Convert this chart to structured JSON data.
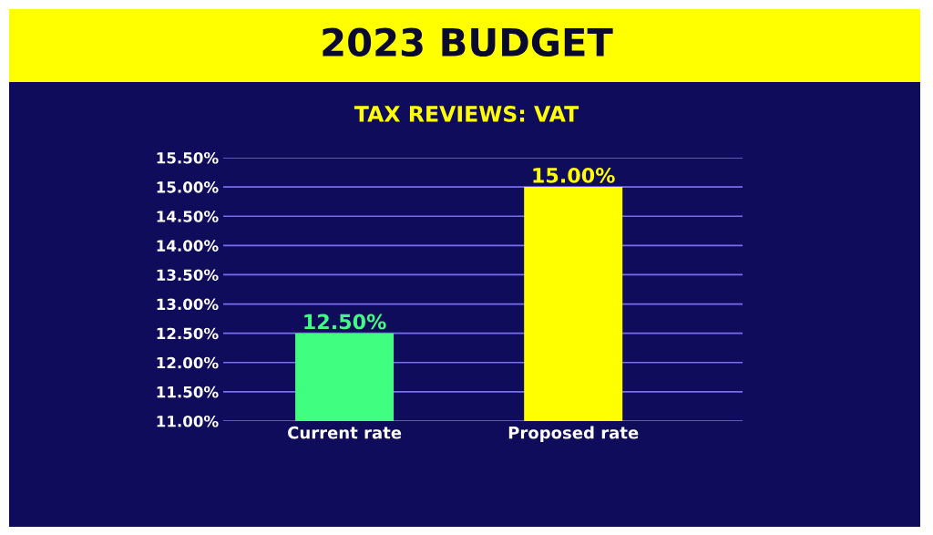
{
  "chart_data": {
    "type": "bar",
    "title": "2023 BUDGET",
    "subtitle": "TAX REVIEWS: VAT",
    "categories": [
      "Current rate",
      "Proposed rate"
    ],
    "values": [
      12.5,
      15.0
    ],
    "colors": [
      "#40ff80",
      "#ffff00"
    ],
    "value_labels": [
      "12.50%",
      "15.00%"
    ],
    "ylim": [
      11.0,
      15.5
    ],
    "yticks": [
      {
        "value": 11.0,
        "label": "11.00%"
      },
      {
        "value": 11.5,
        "label": "11.50%"
      },
      {
        "value": 12.0,
        "label": "12.00%"
      },
      {
        "value": 12.5,
        "label": "12.50%"
      },
      {
        "value": 13.0,
        "label": "13.00%"
      },
      {
        "value": 13.5,
        "label": "13.50%"
      },
      {
        "value": 14.0,
        "label": "14.00%"
      },
      {
        "value": 14.5,
        "label": "14.50%"
      },
      {
        "value": 15.0,
        "label": "15.00%"
      },
      {
        "value": 15.5,
        "label": "15.50%"
      }
    ],
    "grid": "y"
  }
}
